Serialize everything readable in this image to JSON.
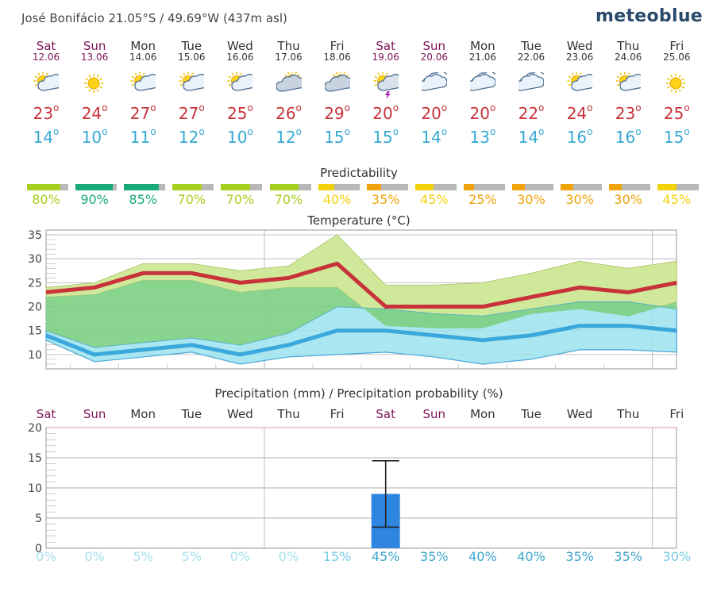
{
  "header": {
    "location": "José Bonifácio  21.05°S / 49.69°W (437m asl)",
    "brand": "meteoblue"
  },
  "days": [
    {
      "name": "Sat",
      "date": "12.06",
      "weekend": true,
      "icon": "sun-cloud-icon",
      "tmax": "23",
      "tmin": "14",
      "pred": 80,
      "pred_label": "80%",
      "pred_color": "#a7cf1f"
    },
    {
      "name": "Sun",
      "date": "13.06",
      "weekend": true,
      "icon": "sun-icon",
      "tmax": "24",
      "tmin": "10",
      "pred": 90,
      "pred_label": "90%",
      "pred_color": "#1aa97a"
    },
    {
      "name": "Mon",
      "date": "14.06",
      "weekend": false,
      "icon": "sun-cloud-icon",
      "tmax": "27",
      "tmin": "11",
      "pred": 85,
      "pred_label": "85%",
      "pred_color": "#1aa97a"
    },
    {
      "name": "Tue",
      "date": "15.06",
      "weekend": false,
      "icon": "sun-cloud-icon",
      "tmax": "27",
      "tmin": "12",
      "pred": 70,
      "pred_label": "70%",
      "pred_color": "#a7cf1f"
    },
    {
      "name": "Wed",
      "date": "16.06",
      "weekend": false,
      "icon": "sun-cloud-icon",
      "tmax": "25",
      "tmin": "10",
      "pred": 70,
      "pred_label": "70%",
      "pred_color": "#a7cf1f"
    },
    {
      "name": "Thu",
      "date": "17.06",
      "weekend": false,
      "icon": "cloud-sun-icon",
      "tmax": "26",
      "tmin": "12",
      "pred": 70,
      "pred_label": "70%",
      "pred_color": "#a7cf1f"
    },
    {
      "name": "Fri",
      "date": "18.06",
      "weekend": false,
      "icon": "cloud-sun-icon",
      "tmax": "29",
      "tmin": "15",
      "pred": 40,
      "pred_label": "40%",
      "pred_color": "#f2d20c"
    },
    {
      "name": "Sat",
      "date": "19.06",
      "weekend": true,
      "icon": "sun-storm-icon",
      "tmax": "20",
      "tmin": "15",
      "pred": 35,
      "pred_label": "35%",
      "pred_color": "#f0a30a"
    },
    {
      "name": "Sun",
      "date": "20.06",
      "weekend": true,
      "icon": "cloud-icon",
      "tmax": "20",
      "tmin": "14",
      "pred": 45,
      "pred_label": "45%",
      "pred_color": "#f2d20c"
    },
    {
      "name": "Mon",
      "date": "21.06",
      "weekend": false,
      "icon": "cloud-icon",
      "tmax": "20",
      "tmin": "13",
      "pred": 25,
      "pred_label": "25%",
      "pred_color": "#f0a30a"
    },
    {
      "name": "Tue",
      "date": "22.06",
      "weekend": false,
      "icon": "cloud-icon",
      "tmax": "22",
      "tmin": "14",
      "pred": 30,
      "pred_label": "30%",
      "pred_color": "#f0a30a"
    },
    {
      "name": "Wed",
      "date": "23.06",
      "weekend": false,
      "icon": "sun-cloud-icon",
      "tmax": "24",
      "tmin": "16",
      "pred": 30,
      "pred_label": "30%",
      "pred_color": "#f0a30a"
    },
    {
      "name": "Thu",
      "date": "24.06",
      "weekend": false,
      "icon": "sun-cloud-icon",
      "tmax": "23",
      "tmin": "16",
      "pred": 30,
      "pred_label": "30%",
      "pred_color": "#f0a30a"
    },
    {
      "name": "Fri",
      "date": "25.06",
      "weekend": false,
      "icon": "sun-icon",
      "tmax": "25",
      "tmin": "15",
      "pred": 45,
      "pred_label": "45%",
      "pred_color": "#f2d20c"
    }
  ],
  "deg_symbol": "o",
  "predictability_title": "Predictability",
  "chart_data": [
    {
      "type": "line",
      "title": "Temperature (°C)",
      "categories": [
        "Sat",
        "Sun",
        "Mon",
        "Tue",
        "Wed",
        "Thu",
        "Fri",
        "Sat",
        "Sun",
        "Mon",
        "Tue",
        "Wed",
        "Thu",
        "Fri"
      ],
      "ylim": [
        7,
        36
      ],
      "yticks": [
        "10",
        "15",
        "20",
        "25",
        "30",
        "35"
      ],
      "ytick_values": [
        10,
        15,
        20,
        25,
        30,
        35
      ],
      "series": [
        {
          "values": [
            23,
            24,
            27,
            27,
            25,
            26,
            29,
            20,
            20,
            20,
            22,
            24,
            23,
            25
          ],
          "color": "#c8323a"
        },
        {
          "values": [
            14,
            10,
            11,
            12,
            10,
            12,
            15,
            15,
            14,
            13,
            14,
            16,
            16,
            15
          ],
          "color": "#3aa8dc"
        }
      ],
      "bands": [
        {
          "upper": [
            24,
            25,
            29,
            29,
            27.5,
            28.5,
            35,
            24.5,
            24.5,
            25,
            27,
            29.5,
            28,
            29.5
          ],
          "lower": [
            22,
            22.5,
            25.5,
            25.5,
            23,
            24,
            24,
            16,
            15.5,
            15.5,
            18.5,
            19.5,
            18,
            21
          ],
          "color": "#cfe89a"
        },
        {
          "upper": [
            15,
            11.5,
            12.5,
            13.5,
            12,
            14.5,
            20,
            19.5,
            18.5,
            18,
            19.5,
            21,
            21,
            19.5
          ],
          "lower": [
            13,
            8.5,
            9.5,
            10.5,
            8,
            9.5,
            10,
            10.5,
            9.5,
            8,
            9,
            11,
            11,
            10.5
          ],
          "color": "#9be3ee"
        }
      ]
    },
    {
      "type": "bar",
      "title": "Precipitation (mm) / Precipitation probability (%)",
      "categories": [
        "Sat",
        "Sun",
        "Mon",
        "Tue",
        "Wed",
        "Thu",
        "Fri",
        "Sat",
        "Sun",
        "Mon",
        "Tue",
        "Wed",
        "Thu",
        "Fri"
      ],
      "weekend": [
        true,
        true,
        false,
        false,
        false,
        false,
        false,
        true,
        true,
        false,
        false,
        false,
        false,
        false
      ],
      "ylim": [
        0,
        20
      ],
      "yticks": [
        "0",
        "5",
        "10",
        "15",
        "20"
      ],
      "ytick_values": [
        0,
        5,
        10,
        15,
        20
      ],
      "values": [
        0,
        0,
        0,
        0,
        0,
        0,
        0,
        9,
        0,
        0,
        0,
        0,
        0,
        0
      ],
      "error_high": [
        null,
        null,
        null,
        null,
        null,
        null,
        null,
        14.5,
        null,
        null,
        null,
        null,
        null,
        null
      ],
      "error_low": [
        null,
        null,
        null,
        null,
        null,
        null,
        null,
        3.5,
        null,
        null,
        null,
        null,
        null,
        null
      ],
      "bar_color": "#2f86e0",
      "probabilities": [
        "0%",
        "0%",
        "5%",
        "5%",
        "0%",
        "0%",
        "15%",
        "45%",
        "35%",
        "40%",
        "40%",
        "35%",
        "35%",
        "30%"
      ],
      "probability_values": [
        0,
        0,
        5,
        5,
        0,
        0,
        15,
        45,
        35,
        40,
        40,
        35,
        35,
        30
      ]
    }
  ]
}
